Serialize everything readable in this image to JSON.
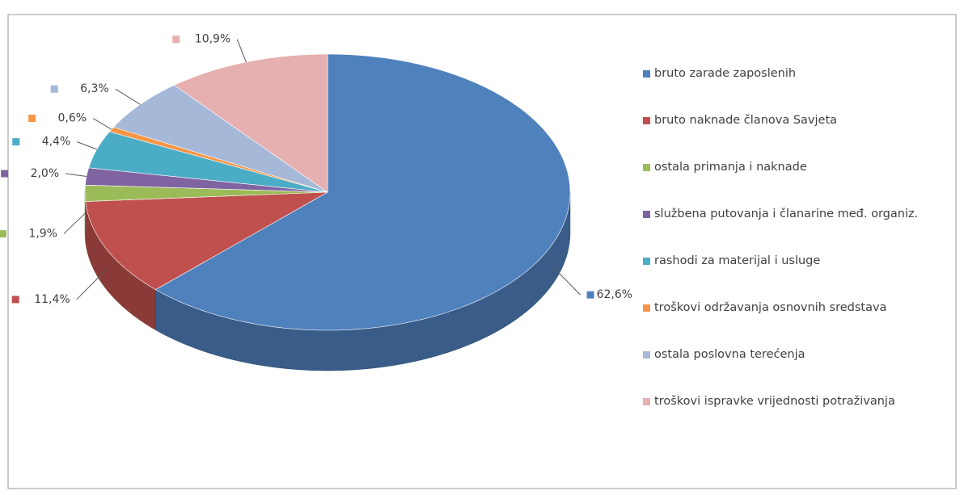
{
  "chart_data": {
    "type": "pie",
    "categories": [
      "bruto zarade zaposlenih",
      "bruto naknade članova Savjeta",
      "ostala primanja i naknade",
      "službena putovanja i članarine međ. organiz.",
      "rashodi za materijal i usluge",
      "troškovi održavanja osnovnih sredstava",
      "ostala poslovna terećenja",
      "troškovi ispravke vrijednosti potraživanja"
    ],
    "values": [
      62.6,
      11.4,
      1.9,
      2.0,
      4.4,
      0.6,
      6.3,
      10.9
    ],
    "value_labels": [
      "62,6%",
      "11,4%",
      "1,9%",
      "2,0%",
      "4,4%",
      "0,6%",
      "6,3%",
      "10,9%"
    ],
    "colors": [
      "#4f81bd",
      "#c0504d",
      "#9bbb59",
      "#8064a2",
      "#4bacc6",
      "#f79646",
      "#a5b8d8",
      "#e6b0b0"
    ],
    "legend": "right"
  }
}
